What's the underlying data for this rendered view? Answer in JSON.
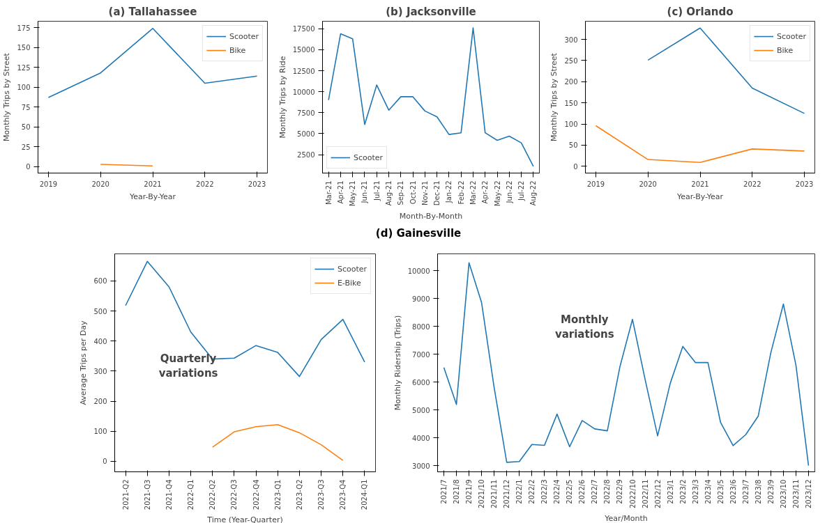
{
  "chart_data": [
    {
      "type": "line",
      "title": "(a) Tallahassee",
      "xlabel": "Year-By-Year",
      "ylabel": "Monthly Trips by Street",
      "x": [
        2019,
        2020,
        2021,
        2022,
        2023
      ],
      "xlim": [
        2018.8,
        2023.2
      ],
      "xticks": [
        2019,
        2020,
        2021,
        2022,
        2023
      ],
      "ylim": [
        -8,
        183
      ],
      "yticks": [
        0,
        25,
        50,
        75,
        100,
        125,
        150,
        175
      ],
      "grid": false,
      "legend": "top right",
      "series": [
        {
          "name": "Scooter",
          "color": "#1f77b4",
          "values": [
            87,
            118,
            174,
            105,
            114
          ]
        },
        {
          "name": "Bike",
          "color": "#ff7f0e",
          "values": [
            null,
            3,
            1,
            null,
            null
          ]
        }
      ]
    },
    {
      "type": "line",
      "title": "(b) Jacksonville",
      "xlabel": "Month-By-Month",
      "ylabel": "Monthly Trips by Ride",
      "categories": [
        "Mar-21",
        "Apr-21",
        "May-21",
        "Jun-21",
        "Jul-21",
        "Aug-21",
        "Sep-21",
        "Oct-21",
        "Nov-21",
        "Dec-21",
        "Jan-22",
        "Feb-22",
        "Mar-22",
        "Apr-22",
        "May-22",
        "Jun-22",
        "Jul-22",
        "Aug-22"
      ],
      "ylim": [
        300,
        18400
      ],
      "yticks": [
        2500,
        5000,
        7500,
        10000,
        12500,
        15000,
        17500
      ],
      "grid": false,
      "legend": "bottom left",
      "series": [
        {
          "name": "Scooter",
          "color": "#1f77b4",
          "values": [
            9000,
            16900,
            16300,
            6100,
            10800,
            7800,
            9400,
            9400,
            7700,
            7000,
            4900,
            5100,
            17600,
            5100,
            4200,
            4700,
            3900,
            1100
          ]
        }
      ]
    },
    {
      "type": "line",
      "title": "(c) Orlando",
      "xlabel": "Year-By-Year",
      "ylabel": "Monthly Trips by Street",
      "x": [
        2019,
        2020,
        2021,
        2022,
        2023
      ],
      "xlim": [
        2018.8,
        2023.2
      ],
      "xticks": [
        2019,
        2020,
        2021,
        2022,
        2023
      ],
      "ylim": [
        -16,
        343
      ],
      "yticks": [
        0,
        50,
        100,
        150,
        200,
        250,
        300
      ],
      "grid": false,
      "legend": "top right",
      "series": [
        {
          "name": "Scooter",
          "color": "#1f77b4",
          "values": [
            null,
            251,
            327,
            185,
            125
          ]
        },
        {
          "name": "Bike",
          "color": "#ff7f0e",
          "values": [
            96,
            16,
            9,
            41,
            36
          ]
        }
      ]
    },
    {
      "type": "line",
      "title": "(d) Gainesville",
      "xlabel": "Time (Year-Quarter)",
      "ylabel": "Average Trips per Day",
      "categories": [
        "2021-Q2",
        "2021-Q3",
        "2021-Q4",
        "2022-Q1",
        "2022-Q2",
        "2022-Q3",
        "2022-Q4",
        "2023-Q1",
        "2023-Q2",
        "2023-Q3",
        "2023-Q4",
        "2024-Q1"
      ],
      "ylim": [
        -35,
        690
      ],
      "yticks": [
        0,
        100,
        200,
        300,
        400,
        500,
        600
      ],
      "grid": false,
      "legend": "top right",
      "annotations": [
        "Quarterly\nvariations"
      ],
      "series": [
        {
          "name": "Scooter",
          "color": "#1f77b4",
          "values": [
            518,
            665,
            580,
            430,
            340,
            343,
            385,
            362,
            282,
            405,
            472,
            330
          ]
        },
        {
          "name": "E-Bike",
          "color": "#ff7f0e",
          "values": [
            null,
            null,
            null,
            null,
            47,
            98,
            115,
            122,
            95,
            55,
            3,
            null
          ]
        }
      ]
    },
    {
      "type": "line",
      "xlabel": "Year/Month",
      "ylabel": "Monthly Ridership (Trips)",
      "categories": [
        "2021/7",
        "2021/8",
        "2021/9",
        "2021/10",
        "2021/11",
        "2021/12",
        "2022/1",
        "2022/2",
        "2022/3",
        "2022/4",
        "2022/5",
        "2022/6",
        "2022/7",
        "2022/8",
        "2022/9",
        "2022/10",
        "2022/11",
        "2022/12",
        "2023/1",
        "2023/2",
        "2023/3",
        "2023/4",
        "2023/5",
        "2023/6",
        "2023/7",
        "2023/8",
        "2023/9",
        "2023/10",
        "2023/11",
        "2023/12"
      ],
      "ylim": [
        2780,
        10600
      ],
      "yticks": [
        3000,
        4000,
        5000,
        6000,
        7000,
        8000,
        9000,
        10000
      ],
      "grid": false,
      "annotations": [
        "Monthly\nvariations"
      ],
      "series": [
        {
          "color": "#1f77b4",
          "values": [
            6520,
            5200,
            10280,
            8850,
            5800,
            3120,
            3150,
            3760,
            3730,
            4850,
            3680,
            4620,
            4320,
            4250,
            6550,
            8250,
            6100,
            4070,
            5950,
            7280,
            6700,
            6700,
            4560,
            3720,
            4110,
            4780,
            7050,
            8800,
            6600,
            3000
          ]
        }
      ]
    }
  ]
}
